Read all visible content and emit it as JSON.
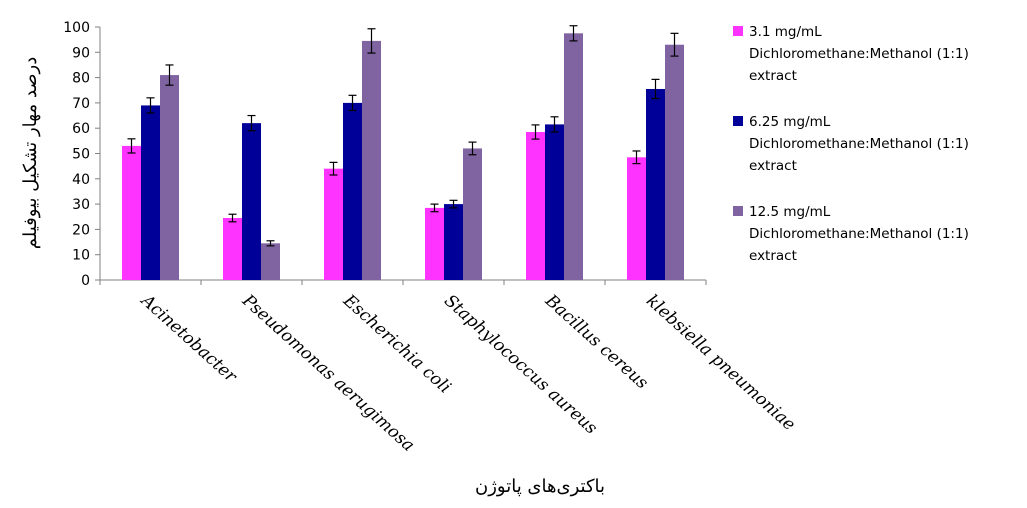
{
  "chart_data": {
    "type": "bar",
    "title": "",
    "xlabel": "باکتری‌های پاتوژن",
    "ylabel": "درصد مهار تشکیل بیوفیلم",
    "ylim": [
      0,
      100
    ],
    "yticks": [
      0,
      10,
      20,
      30,
      40,
      50,
      60,
      70,
      80,
      90,
      100
    ],
    "grid": false,
    "legend_position": "right",
    "categories": [
      "Acinetobacter",
      "Pseudomonas aerugimosa",
      "Escherichia coli",
      "Staphylococcus aureus",
      "Bacillus cereus",
      "klebsiella pneumoniae"
    ],
    "series": [
      {
        "name": "3.1 mg/mL Dichloromethane:Methanol (1:1) extract",
        "legend_lines": [
          "3.1 mg/mL",
          "Dichloromethane:Methanol (1:1)",
          "extract"
        ],
        "color": "#ff33ff",
        "values": [
          53,
          24.5,
          44,
          28.5,
          58.5,
          48.5
        ],
        "errors": [
          2.8,
          1.5,
          2.5,
          1.5,
          2.8,
          2.5
        ]
      },
      {
        "name": "6.25 mg/mL Dichloromethane:Methanol (1:1) extract",
        "legend_lines": [
          "6.25 mg/mL",
          "Dichloromethane:Methanol (1:1)",
          "extract"
        ],
        "color": "#000099",
        "values": [
          69,
          62,
          70,
          30,
          61.5,
          75.5
        ],
        "errors": [
          3.0,
          3.0,
          3.0,
          1.5,
          3.0,
          3.8
        ]
      },
      {
        "name": "12.5 mg/mL Dichloromethane:Methanol (1:1) extract",
        "legend_lines": [
          "12.5 mg/mL",
          "Dichloromethane:Methanol (1:1)",
          "extract"
        ],
        "color": "#8064a2",
        "values": [
          81,
          14.5,
          94.5,
          52,
          97.5,
          93
        ],
        "errors": [
          4.0,
          1.0,
          4.8,
          2.5,
          3.0,
          4.5
        ]
      }
    ]
  }
}
